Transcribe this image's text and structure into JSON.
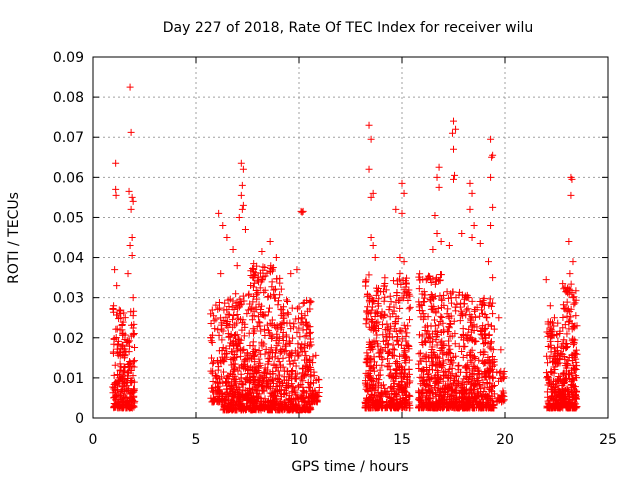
{
  "chart_data": {
    "type": "scatter",
    "title": "Day 227 of 2018, Rate Of TEC Index for receiver wilu",
    "xlabel": "GPS time / hours",
    "ylabel": "ROTI / TECUs",
    "xlim": [
      0,
      25
    ],
    "ylim": [
      0,
      0.09
    ],
    "xticks": [
      0,
      5,
      10,
      15,
      20,
      25
    ],
    "yticks": [
      0,
      0.01,
      0.02,
      0.03,
      0.04,
      0.05,
      0.06,
      0.07,
      0.08,
      0.09
    ],
    "xtick_labels": [
      "0",
      "5",
      "10",
      "15",
      "20",
      "25"
    ],
    "ytick_labels": [
      "0",
      "0.01",
      "0.02",
      "0.03",
      "0.04",
      "0.05",
      "0.06",
      "0.07",
      "0.08",
      "0.09"
    ],
    "grid": true,
    "marker": "+",
    "series_color": "#ff0000",
    "series": [
      {
        "name": "ROTI",
        "points": [
          [
            1.1,
            0.0635
          ],
          [
            1.1,
            0.057
          ],
          [
            1.12,
            0.0555
          ],
          [
            1.05,
            0.037
          ],
          [
            1.15,
            0.033
          ],
          [
            1.0,
            0.028
          ],
          [
            1.8,
            0.0825
          ],
          [
            1.85,
            0.0712
          ],
          [
            1.75,
            0.0565
          ],
          [
            1.9,
            0.055
          ],
          [
            1.95,
            0.054
          ],
          [
            1.85,
            0.052
          ],
          [
            1.9,
            0.045
          ],
          [
            1.8,
            0.043
          ],
          [
            1.9,
            0.0405
          ],
          [
            1.7,
            0.036
          ],
          [
            1.95,
            0.03
          ],
          [
            6.1,
            0.051
          ],
          [
            6.3,
            0.048
          ],
          [
            6.5,
            0.045
          ],
          [
            6.8,
            0.042
          ],
          [
            7.0,
            0.038
          ],
          [
            6.2,
            0.036
          ],
          [
            7.2,
            0.0635
          ],
          [
            7.3,
            0.062
          ],
          [
            7.25,
            0.058
          ],
          [
            7.2,
            0.0555
          ],
          [
            7.3,
            0.053
          ],
          [
            7.25,
            0.052
          ],
          [
            7.1,
            0.05
          ],
          [
            7.4,
            0.047
          ],
          [
            8.2,
            0.0415
          ],
          [
            8.6,
            0.044
          ],
          [
            8.9,
            0.04
          ],
          [
            7.8,
            0.0385
          ],
          [
            9.6,
            0.036
          ],
          [
            9.9,
            0.037
          ],
          [
            10.1,
            0.0515
          ],
          [
            10.2,
            0.0515
          ],
          [
            10.15,
            0.0513
          ],
          [
            13.4,
            0.073
          ],
          [
            13.5,
            0.0695
          ],
          [
            13.4,
            0.062
          ],
          [
            13.6,
            0.056
          ],
          [
            13.5,
            0.055
          ],
          [
            13.5,
            0.045
          ],
          [
            13.6,
            0.043
          ],
          [
            13.7,
            0.04
          ],
          [
            14.7,
            0.052
          ],
          [
            15.0,
            0.0585
          ],
          [
            15.1,
            0.056
          ],
          [
            15.0,
            0.051
          ],
          [
            14.9,
            0.04
          ],
          [
            15.1,
            0.039
          ],
          [
            14.9,
            0.036
          ],
          [
            16.8,
            0.0625
          ],
          [
            16.7,
            0.06
          ],
          [
            16.8,
            0.0575
          ],
          [
            16.6,
            0.0505
          ],
          [
            16.7,
            0.046
          ],
          [
            16.9,
            0.044
          ],
          [
            16.5,
            0.042
          ],
          [
            17.5,
            0.074
          ],
          [
            17.6,
            0.072
          ],
          [
            17.45,
            0.071
          ],
          [
            17.5,
            0.067
          ],
          [
            17.55,
            0.0605
          ],
          [
            17.5,
            0.0595
          ],
          [
            17.9,
            0.046
          ],
          [
            17.3,
            0.043
          ],
          [
            18.3,
            0.0585
          ],
          [
            18.4,
            0.056
          ],
          [
            18.3,
            0.052
          ],
          [
            18.5,
            0.048
          ],
          [
            18.4,
            0.045
          ],
          [
            18.8,
            0.0435
          ],
          [
            19.3,
            0.0695
          ],
          [
            19.4,
            0.0655
          ],
          [
            19.35,
            0.065
          ],
          [
            19.3,
            0.06
          ],
          [
            19.4,
            0.0525
          ],
          [
            19.3,
            0.048
          ],
          [
            19.2,
            0.039
          ],
          [
            19.4,
            0.035
          ],
          [
            19.7,
            0.025
          ],
          [
            19.8,
            0.017
          ],
          [
            19.9,
            0.01
          ],
          [
            22.0,
            0.0345
          ],
          [
            22.2,
            0.028
          ],
          [
            22.4,
            0.025
          ],
          [
            23.2,
            0.06
          ],
          [
            23.25,
            0.0595
          ],
          [
            23.2,
            0.0555
          ],
          [
            23.1,
            0.044
          ],
          [
            23.3,
            0.039
          ],
          [
            23.15,
            0.036
          ],
          [
            23.3,
            0.03
          ]
        ],
        "clusters": [
          {
            "x_from": 0.95,
            "x_to": 2.05,
            "y_from": 0.0025,
            "y_to": 0.028,
            "count": 260
          },
          {
            "x_from": 5.7,
            "x_to": 6.3,
            "y_from": 0.004,
            "y_to": 0.029,
            "count": 90
          },
          {
            "x_from": 6.3,
            "x_to": 7.6,
            "y_from": 0.002,
            "y_to": 0.031,
            "count": 320
          },
          {
            "x_from": 7.6,
            "x_to": 9.2,
            "y_from": 0.002,
            "y_to": 0.038,
            "count": 420
          },
          {
            "x_from": 9.2,
            "x_to": 10.6,
            "y_from": 0.002,
            "y_to": 0.03,
            "count": 300
          },
          {
            "x_from": 10.6,
            "x_to": 11.0,
            "y_from": 0.004,
            "y_to": 0.018,
            "count": 40
          },
          {
            "x_from": 13.2,
            "x_to": 14.2,
            "y_from": 0.0025,
            "y_to": 0.036,
            "count": 260
          },
          {
            "x_from": 14.2,
            "x_to": 15.4,
            "y_from": 0.0025,
            "y_to": 0.035,
            "count": 280
          },
          {
            "x_from": 15.8,
            "x_to": 17.0,
            "y_from": 0.0025,
            "y_to": 0.036,
            "count": 320
          },
          {
            "x_from": 17.0,
            "x_to": 18.3,
            "y_from": 0.0025,
            "y_to": 0.032,
            "count": 300
          },
          {
            "x_from": 18.3,
            "x_to": 19.5,
            "y_from": 0.0025,
            "y_to": 0.03,
            "count": 280
          },
          {
            "x_from": 19.6,
            "x_to": 20.0,
            "y_from": 0.004,
            "y_to": 0.012,
            "count": 30
          },
          {
            "x_from": 22.0,
            "x_to": 22.8,
            "y_from": 0.0025,
            "y_to": 0.024,
            "count": 200
          },
          {
            "x_from": 22.8,
            "x_to": 23.5,
            "y_from": 0.0025,
            "y_to": 0.034,
            "count": 230
          }
        ]
      }
    ]
  }
}
